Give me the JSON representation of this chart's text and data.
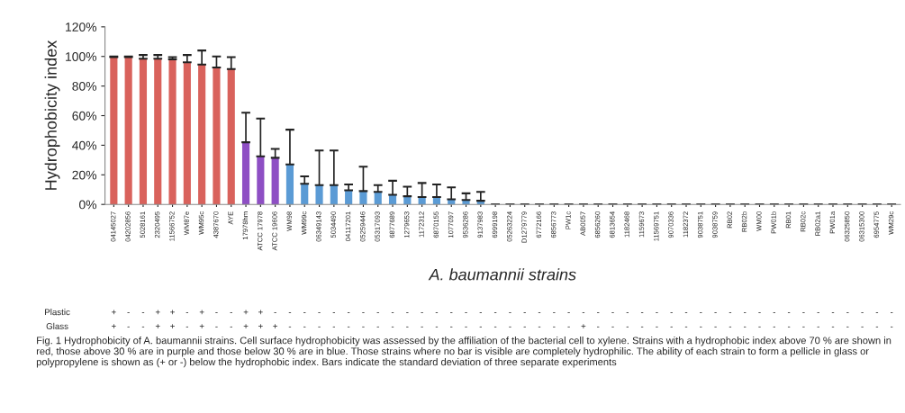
{
  "chart_data": {
    "type": "bar",
    "ylabel": "Hydrophobicity index",
    "xlabel": "A. baumannii strains",
    "categories": [
      "04145027",
      "04202856",
      "5028161",
      "2320495",
      "11566752",
      "WM87e",
      "WM95c",
      "4387670",
      "AYE",
      "17978hm",
      "ATCC 17978",
      "ATCC 19606",
      "WM98",
      "WM99c",
      "06349143",
      "5034490",
      "04117201",
      "05259446",
      "05317093",
      "6877689",
      "1279653",
      "1172312",
      "6870155",
      "1077097",
      "9536286",
      "9137983",
      "6999198",
      "05263224",
      "D1279779",
      "6772166",
      "6856773",
      "PW1c",
      "AB0057",
      "6856260",
      "6813654",
      "1182468",
      "1159673",
      "11569751",
      "9070336",
      "1182372",
      "9038751",
      "9038759",
      "RB02",
      "RB02b",
      "WM00",
      "PW01b",
      "RB01",
      "RB02c",
      "RB02a1",
      "PW01a",
      "06325850",
      "06315300",
      "6954775",
      "WM29c"
    ],
    "values": [
      99.5,
      99.5,
      98.5,
      98.5,
      98,
      96,
      94.5,
      92.5,
      91.5,
      42,
      32.5,
      31.5,
      27,
      14,
      13,
      13,
      9.5,
      9,
      8.5,
      6.5,
      5.5,
      5,
      5,
      3.5,
      3,
      2.5,
      0,
      0,
      0,
      0,
      0,
      0,
      0,
      0,
      0,
      0,
      0,
      0,
      0,
      0,
      0,
      0,
      0,
      0,
      0,
      0,
      0,
      0,
      0,
      0,
      0,
      0,
      0,
      0
    ],
    "errors": [
      [
        99.5,
        100
      ],
      [
        99.5,
        100
      ],
      [
        98.5,
        101
      ],
      [
        98.5,
        101
      ],
      [
        98,
        99.5
      ],
      [
        96,
        101
      ],
      [
        94.5,
        104
      ],
      [
        92.5,
        100
      ],
      [
        91.5,
        99.5
      ],
      [
        42,
        62
      ],
      [
        32.5,
        58
      ],
      [
        31.5,
        37.5
      ],
      [
        27,
        50.5
      ],
      [
        14,
        19
      ],
      [
        13,
        36.5
      ],
      [
        13,
        36.5
      ],
      [
        9.5,
        13.5
      ],
      [
        9,
        25.5
      ],
      [
        8.5,
        13
      ],
      [
        6.5,
        16
      ],
      [
        5.5,
        12
      ],
      [
        5,
        14.5
      ],
      [
        5,
        13.5
      ],
      [
        3.5,
        11.5
      ],
      [
        3,
        7.5
      ],
      [
        2.5,
        8.5
      ],
      [
        0,
        0
      ],
      [
        0,
        0
      ],
      [
        0,
        0
      ],
      [
        0,
        0
      ],
      [
        0,
        0
      ],
      [
        0,
        0
      ],
      [
        0,
        0
      ],
      [
        0,
        0
      ],
      [
        0,
        0
      ],
      [
        0,
        0
      ],
      [
        0,
        0
      ],
      [
        0,
        0
      ],
      [
        0,
        0
      ],
      [
        0,
        0
      ],
      [
        0,
        0
      ],
      [
        0,
        0
      ],
      [
        0,
        0
      ],
      [
        0,
        0
      ],
      [
        0,
        0
      ],
      [
        0,
        0
      ],
      [
        0,
        0
      ],
      [
        0,
        0
      ],
      [
        0,
        0
      ],
      [
        0,
        0
      ],
      [
        0,
        0
      ],
      [
        0,
        0
      ],
      [
        0,
        0
      ],
      [
        0,
        0
      ]
    ],
    "colors": [
      "#d9625c",
      "#d9625c",
      "#d9625c",
      "#d9625c",
      "#d9625c",
      "#d9625c",
      "#d9625c",
      "#d9625c",
      "#d9625c",
      "#8e4fc4",
      "#8e4fc4",
      "#8e4fc4",
      "#5b9bd5",
      "#5b9bd5",
      "#5b9bd5",
      "#5b9bd5",
      "#5b9bd5",
      "#5b9bd5",
      "#5b9bd5",
      "#5b9bd5",
      "#5b9bd5",
      "#5b9bd5",
      "#5b9bd5",
      "#5b9bd5",
      "#5b9bd5",
      "#5b9bd5",
      null,
      null,
      null,
      null,
      null,
      null,
      null,
      null,
      null,
      null,
      null,
      null,
      null,
      null,
      null,
      null,
      null,
      null,
      null,
      null,
      null,
      null,
      null,
      null,
      null,
      null,
      null,
      null
    ],
    "ylim": [
      0,
      120
    ],
    "yticks": [
      {
        "value": 0,
        "label": "0%"
      },
      {
        "value": 20,
        "label": "20%"
      },
      {
        "value": 40,
        "label": "40%"
      },
      {
        "value": 60,
        "label": "60%"
      },
      {
        "value": 80,
        "label": "80%"
      },
      {
        "value": 100,
        "label": "100%"
      },
      {
        "value": 120,
        "label": "120%"
      }
    ],
    "grid": false,
    "annotations": [
      "Plastic",
      "+ - - + + - + - - + + - - - - - - - - - - - - - - - - - - - - - - - - - - - - - - - - - - - - - - - - - - -",
      "Glass",
      "+ - - + + - + - - + + + - - - - - - - - - - - - - - - - - - - - + - - - - - - - - - - - - - - - - - - - - -",
      "Fig. 1 Hydrophobicity of A. baumannii strains. Cell surface hydrophobicity was assessed by the affiliation of the bacterial cell to xylene. Strains with a hydrophobic index above 70 % are shown in red, those above 30 % are in purple and those below 30 % are in blue. Those strains where no bar is visible are completely hydrophilic. The ability of each strain to form a pellicle in glass or polypropylene is shown as (+ or -) below the hydrophobic index. Bars indicate the standard deviation of three separate experiments"
    ]
  }
}
